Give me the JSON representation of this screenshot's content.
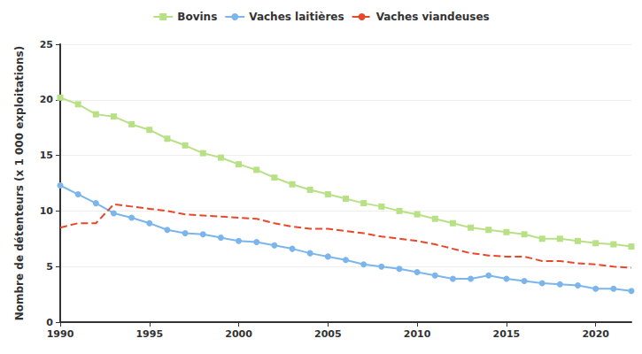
{
  "chart_data": {
    "type": "line",
    "y_label": "Nombre de détenteurs (x 1 000 exploitations)",
    "x": [
      1990,
      1991,
      1992,
      1993,
      1994,
      1995,
      1996,
      1997,
      1998,
      1999,
      2000,
      2001,
      2002,
      2003,
      2004,
      2005,
      2006,
      2007,
      2008,
      2009,
      2010,
      2011,
      2012,
      2013,
      2014,
      2015,
      2016,
      2017,
      2018,
      2019,
      2020,
      2021,
      2022
    ],
    "series": [
      {
        "name": "Bovins",
        "color": "#b8e186",
        "marker": "square",
        "line_style": "solid",
        "values": [
          20.2,
          19.6,
          18.7,
          18.5,
          17.8,
          17.3,
          16.5,
          15.9,
          15.2,
          14.8,
          14.2,
          13.7,
          13.0,
          12.4,
          11.9,
          11.5,
          11.1,
          10.7,
          10.4,
          10.0,
          9.7,
          9.3,
          8.9,
          8.5,
          8.3,
          8.1,
          7.9,
          7.5,
          7.5,
          7.3,
          7.1,
          7.0,
          6.8
        ]
      },
      {
        "name": "Vaches laitières",
        "color": "#7cb5ec",
        "marker": "circle",
        "line_style": "solid",
        "values": [
          12.3,
          11.5,
          10.7,
          9.8,
          9.4,
          8.9,
          8.3,
          8.0,
          7.9,
          7.6,
          7.3,
          7.2,
          6.9,
          6.6,
          6.2,
          5.9,
          5.6,
          5.2,
          5.0,
          4.8,
          4.5,
          4.2,
          3.9,
          3.9,
          4.2,
          3.9,
          3.7,
          3.5,
          3.4,
          3.3,
          3.0,
          3.0,
          2.8
        ]
      },
      {
        "name": "Vaches viandeuses",
        "color": "#e8472a",
        "marker": "none",
        "line_style": "dashed",
        "values": [
          8.5,
          8.9,
          8.9,
          10.6,
          10.4,
          10.2,
          10.0,
          9.7,
          9.6,
          9.5,
          9.4,
          9.3,
          8.9,
          8.6,
          8.4,
          8.4,
          8.2,
          8.0,
          7.7,
          7.5,
          7.3,
          7.0,
          6.6,
          6.2,
          6.0,
          5.9,
          5.9,
          5.5,
          5.5,
          5.3,
          5.2,
          5.0,
          4.9
        ]
      }
    ],
    "xlim": [
      1990,
      2022
    ],
    "xticks": [
      1990,
      1995,
      2000,
      2005,
      2010,
      2015,
      2020
    ],
    "ylim": [
      0,
      25
    ],
    "yticks": [
      0,
      5,
      10,
      15,
      20,
      25
    ],
    "grid": true,
    "legend": "top"
  }
}
